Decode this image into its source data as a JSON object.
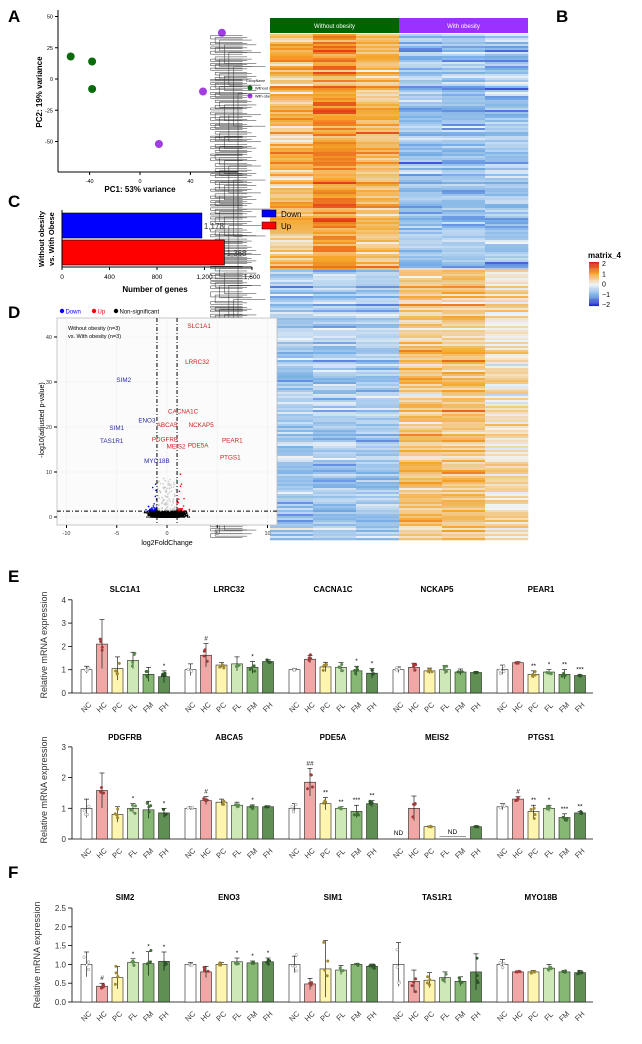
{
  "panel_labels": {
    "a": "A",
    "b": "B",
    "c": "C",
    "d": "D",
    "e": "E",
    "f": "F"
  },
  "colors": {
    "without_obesity": "#0a6b0a",
    "with_obesity": "#a03ee0",
    "down": "#0000ff",
    "up": "#ff0000",
    "nonsig": "#000000",
    "groups": {
      "NC": "#ffffff",
      "HC": "#f2a7a7",
      "PC": "#fff4b0",
      "FL": "#cfe8b8",
      "FM": "#86b874",
      "FH": "#5f8f52"
    }
  },
  "chart_data": [
    {
      "type": "scatter",
      "panel": "A",
      "xlabel": "PC1: 53% variance",
      "ylabel": "PC2: 19% variance",
      "xticks": [
        -40,
        0,
        40
      ],
      "yticks": [
        50,
        25,
        0,
        -25,
        -50
      ],
      "legend": {
        "title": "GroupName",
        "entries": [
          "Without obesity",
          "With obesity"
        ],
        "placement": "right"
      },
      "series": [
        {
          "name": "Without obesity",
          "points": [
            [
              -55,
              18
            ],
            [
              -38,
              14
            ],
            [
              -38,
              -8
            ]
          ]
        },
        {
          "name": "With obesity",
          "points": [
            [
              65,
              37
            ],
            [
              50,
              -10
            ],
            [
              15,
              -52
            ]
          ]
        }
      ]
    },
    {
      "type": "heatmap",
      "panel": "B",
      "column_groups": [
        "Without obesity",
        "With obesity"
      ],
      "columns_per_group": 3,
      "legend": {
        "title": "matrix_4",
        "ticks": [
          "2",
          "1",
          "0",
          "−1",
          "−2"
        ],
        "range": [
          -2,
          2
        ]
      },
      "pattern": "upper cluster high in Without obesity, lower cluster high in With obesity"
    },
    {
      "type": "bar",
      "panel": "C",
      "orientation": "horizontal",
      "ylabel": "Without obesity\nvs. With Obese",
      "ylabel_lines": [
        "Without obesity",
        "vs. With Obese"
      ],
      "xlabel": "Number of genes",
      "xticks": [
        "0",
        "400",
        "800",
        "1,200",
        "1,600"
      ],
      "xlim": [
        0,
        1600
      ],
      "categories": [
        "Down",
        "Up"
      ],
      "values": [
        1178,
        1368
      ],
      "value_labels": [
        "1,178",
        "1,368"
      ],
      "legend": {
        "entries": [
          "Down",
          "Up"
        ],
        "placement": "right"
      }
    },
    {
      "type": "scatter",
      "panel": "D",
      "xlabel": "log2FoldChange",
      "ylabel": "-log10(adjusted p-value)",
      "xticks": [
        -10,
        -5,
        0,
        5,
        10
      ],
      "yticks": [
        0,
        10,
        20,
        30,
        40
      ],
      "xlim": [
        -11,
        11
      ],
      "ylim": [
        -1,
        44
      ],
      "thresholds": {
        "log2fc": [
          -1,
          1
        ],
        "neg_log10_padj": 1.3
      },
      "legend": {
        "entries": [
          "Down",
          "Up",
          "Non-significant"
        ],
        "placement": "top"
      },
      "annotation": [
        "Without obesity (n=3)",
        "vs. With obesity (n=3)"
      ],
      "labels": [
        {
          "gene": "SLC1A1",
          "dir": "up",
          "x": 3.2,
          "y": 42
        },
        {
          "gene": "LRRC32",
          "dir": "up",
          "x": 3,
          "y": 34
        },
        {
          "gene": "SIM2",
          "dir": "down",
          "x": -4.3,
          "y": 30
        },
        {
          "gene": "ENO3",
          "dir": "down",
          "x": -2,
          "y": 21
        },
        {
          "gene": "SIM1",
          "dir": "down",
          "x": -5,
          "y": 19.3
        },
        {
          "gene": "TAS1R1",
          "dir": "down",
          "x": -5.5,
          "y": 16.5
        },
        {
          "gene": "MYO18B",
          "dir": "down",
          "x": -1,
          "y": 12
        },
        {
          "gene": "PDGFRB",
          "dir": "up",
          "x": -0.2,
          "y": 16.8
        },
        {
          "gene": "ABCA5",
          "dir": "up",
          "x": 0,
          "y": 20
        },
        {
          "gene": "CACNA1C",
          "dir": "up",
          "x": 1.6,
          "y": 23
        },
        {
          "gene": "NCKAP5",
          "dir": "up",
          "x": 3.4,
          "y": 20
        },
        {
          "gene": "MEIS2",
          "dir": "up",
          "x": 0.9,
          "y": 15.2
        },
        {
          "gene": "PDE5A",
          "dir": "up",
          "x": 3.1,
          "y": 15.5
        },
        {
          "gene": "PEAR1",
          "dir": "up",
          "x": 6.5,
          "y": 16.6
        },
        {
          "gene": "PTGS1",
          "dir": "up",
          "x": 6.3,
          "y": 12.8
        }
      ]
    },
    {
      "type": "bar",
      "panel": "E-top",
      "ylabel": "Relative mRNA expression",
      "ylim": [
        0,
        4
      ],
      "yticks": [
        0,
        1,
        2,
        3,
        4
      ],
      "groups": [
        "NC",
        "HC",
        "PC",
        "FL",
        "FM",
        "FH"
      ],
      "genes": [
        {
          "name": "SLC1A1",
          "values": [
            1.0,
            2.1,
            1.05,
            1.4,
            0.8,
            0.7
          ],
          "sd": [
            0.15,
            1.05,
            0.5,
            0.35,
            0.3,
            0.25
          ],
          "sig": [
            "",
            "",
            "",
            "",
            "",
            "*"
          ]
        },
        {
          "name": "LRRC32",
          "values": [
            1.0,
            1.62,
            1.2,
            1.25,
            1.1,
            1.35
          ],
          "sd": [
            0.25,
            0.5,
            0.1,
            0.3,
            0.25,
            0.08
          ],
          "sig": [
            "",
            "#",
            "",
            "",
            "*",
            ""
          ]
        },
        {
          "name": "CACNA1C",
          "values": [
            1.0,
            1.45,
            1.12,
            1.1,
            0.95,
            0.85
          ],
          "sd": [
            0.04,
            0.15,
            0.2,
            0.2,
            0.2,
            0.2
          ],
          "sig": [
            "",
            "",
            "",
            "",
            "*",
            "*"
          ]
        },
        {
          "name": "NCKAP5",
          "values": [
            1.0,
            1.1,
            0.95,
            1.0,
            0.9,
            0.88
          ],
          "sd": [
            0.12,
            0.18,
            0.12,
            0.18,
            0.13,
            0.05
          ],
          "sig": [
            "",
            "",
            "",
            "",
            "",
            ""
          ]
        },
        {
          "name": "PEAR1",
          "values": [
            1.0,
            1.3,
            0.8,
            0.9,
            0.8,
            0.75
          ],
          "sd": [
            0.2,
            0.04,
            0.15,
            0.1,
            0.2,
            0.04
          ],
          "sig": [
            "",
            "",
            "**",
            "*",
            "**",
            "***"
          ]
        }
      ]
    },
    {
      "type": "bar",
      "panel": "E-bottom",
      "ylabel": "Relative mRNA expression",
      "ylim": [
        0,
        3
      ],
      "yticks": [
        0,
        1,
        2,
        3
      ],
      "groups": [
        "NC",
        "HC",
        "PC",
        "FL",
        "FM",
        "FH"
      ],
      "genes": [
        {
          "name": "PDGFRB",
          "values": [
            1.0,
            1.58,
            0.8,
            1.0,
            0.95,
            0.85
          ],
          "sd": [
            0.3,
            0.57,
            0.25,
            0.15,
            0.28,
            0.15
          ],
          "sig": [
            "",
            "",
            "",
            "*",
            "",
            "*"
          ]
        },
        {
          "name": "ABCA5",
          "values": [
            1.0,
            1.25,
            1.2,
            1.1,
            1.05,
            1.05
          ],
          "sd": [
            0.05,
            0.13,
            0.1,
            0.1,
            0.06,
            0.03
          ],
          "sig": [
            "",
            "#",
            "",
            "",
            "*",
            ""
          ]
        },
        {
          "name": "PDE5A",
          "values": [
            1.0,
            1.85,
            1.15,
            1.0,
            0.9,
            1.15
          ],
          "sd": [
            0.15,
            0.45,
            0.2,
            0.05,
            0.2,
            0.1
          ],
          "sig": [
            "",
            "##",
            "**",
            "**",
            "***",
            "**"
          ]
        },
        {
          "name": "MEIS2",
          "values": [
            null,
            1.0,
            0.4,
            null,
            null,
            0.4
          ],
          "sd": [
            0,
            0.4,
            0.02,
            0,
            0,
            0.02
          ],
          "sig": [
            "",
            "",
            "",
            "",
            "",
            ""
          ],
          "nd": [
            "ND",
            "ND"
          ]
        },
        {
          "name": "PTGS1",
          "values": [
            1.05,
            1.3,
            0.9,
            1.0,
            0.7,
            0.85
          ],
          "sd": [
            0.1,
            0.08,
            0.2,
            0.1,
            0.12,
            0.05
          ],
          "sig": [
            "",
            "#",
            "**",
            "*",
            "***",
            "**"
          ]
        }
      ]
    },
    {
      "type": "bar",
      "panel": "F",
      "ylabel": "Relative mRNA expression",
      "ylim": [
        0,
        2.5
      ],
      "yticks": [
        "0.0",
        "0.5",
        "1.0",
        "1.5",
        "2.0",
        "2.5"
      ],
      "groups": [
        "NC",
        "HC",
        "PC",
        "FL",
        "FM",
        "FH"
      ],
      "genes": [
        {
          "name": "SIM2",
          "values": [
            1.0,
            0.42,
            0.65,
            1.05,
            1.02,
            1.08
          ],
          "sd": [
            0.33,
            0.08,
            0.3,
            0.1,
            0.32,
            0.25
          ],
          "sig": [
            "",
            "#",
            "",
            "*",
            "*",
            "*"
          ]
        },
        {
          "name": "ENO3",
          "values": [
            1.0,
            0.8,
            1.0,
            1.07,
            1.04,
            1.07
          ],
          "sd": [
            0.05,
            0.15,
            0.05,
            0.1,
            0.05,
            0.1
          ],
          "sig": [
            "",
            "",
            "",
            "*",
            "*",
            "*"
          ]
        },
        {
          "name": "SIM1",
          "values": [
            1.0,
            0.48,
            0.88,
            0.85,
            1.0,
            0.95
          ],
          "sd": [
            0.22,
            0.15,
            0.75,
            0.12,
            0.03,
            0.06
          ],
          "sig": [
            "",
            "",
            "",
            "",
            "",
            ""
          ]
        },
        {
          "name": "TAS1R1",
          "values": [
            1.0,
            0.55,
            0.58,
            0.65,
            0.55,
            0.8
          ],
          "sd": [
            0.58,
            0.3,
            0.2,
            0.15,
            0.12,
            0.48
          ],
          "sig": [
            "",
            "",
            "",
            "",
            "",
            ""
          ]
        },
        {
          "name": "MYO18B",
          "values": [
            1.0,
            0.8,
            0.8,
            0.9,
            0.8,
            0.78
          ],
          "sd": [
            0.13,
            0.03,
            0.04,
            0.1,
            0.04,
            0.06
          ],
          "sig": [
            "",
            "",
            "",
            "",
            "",
            ""
          ]
        }
      ]
    }
  ]
}
